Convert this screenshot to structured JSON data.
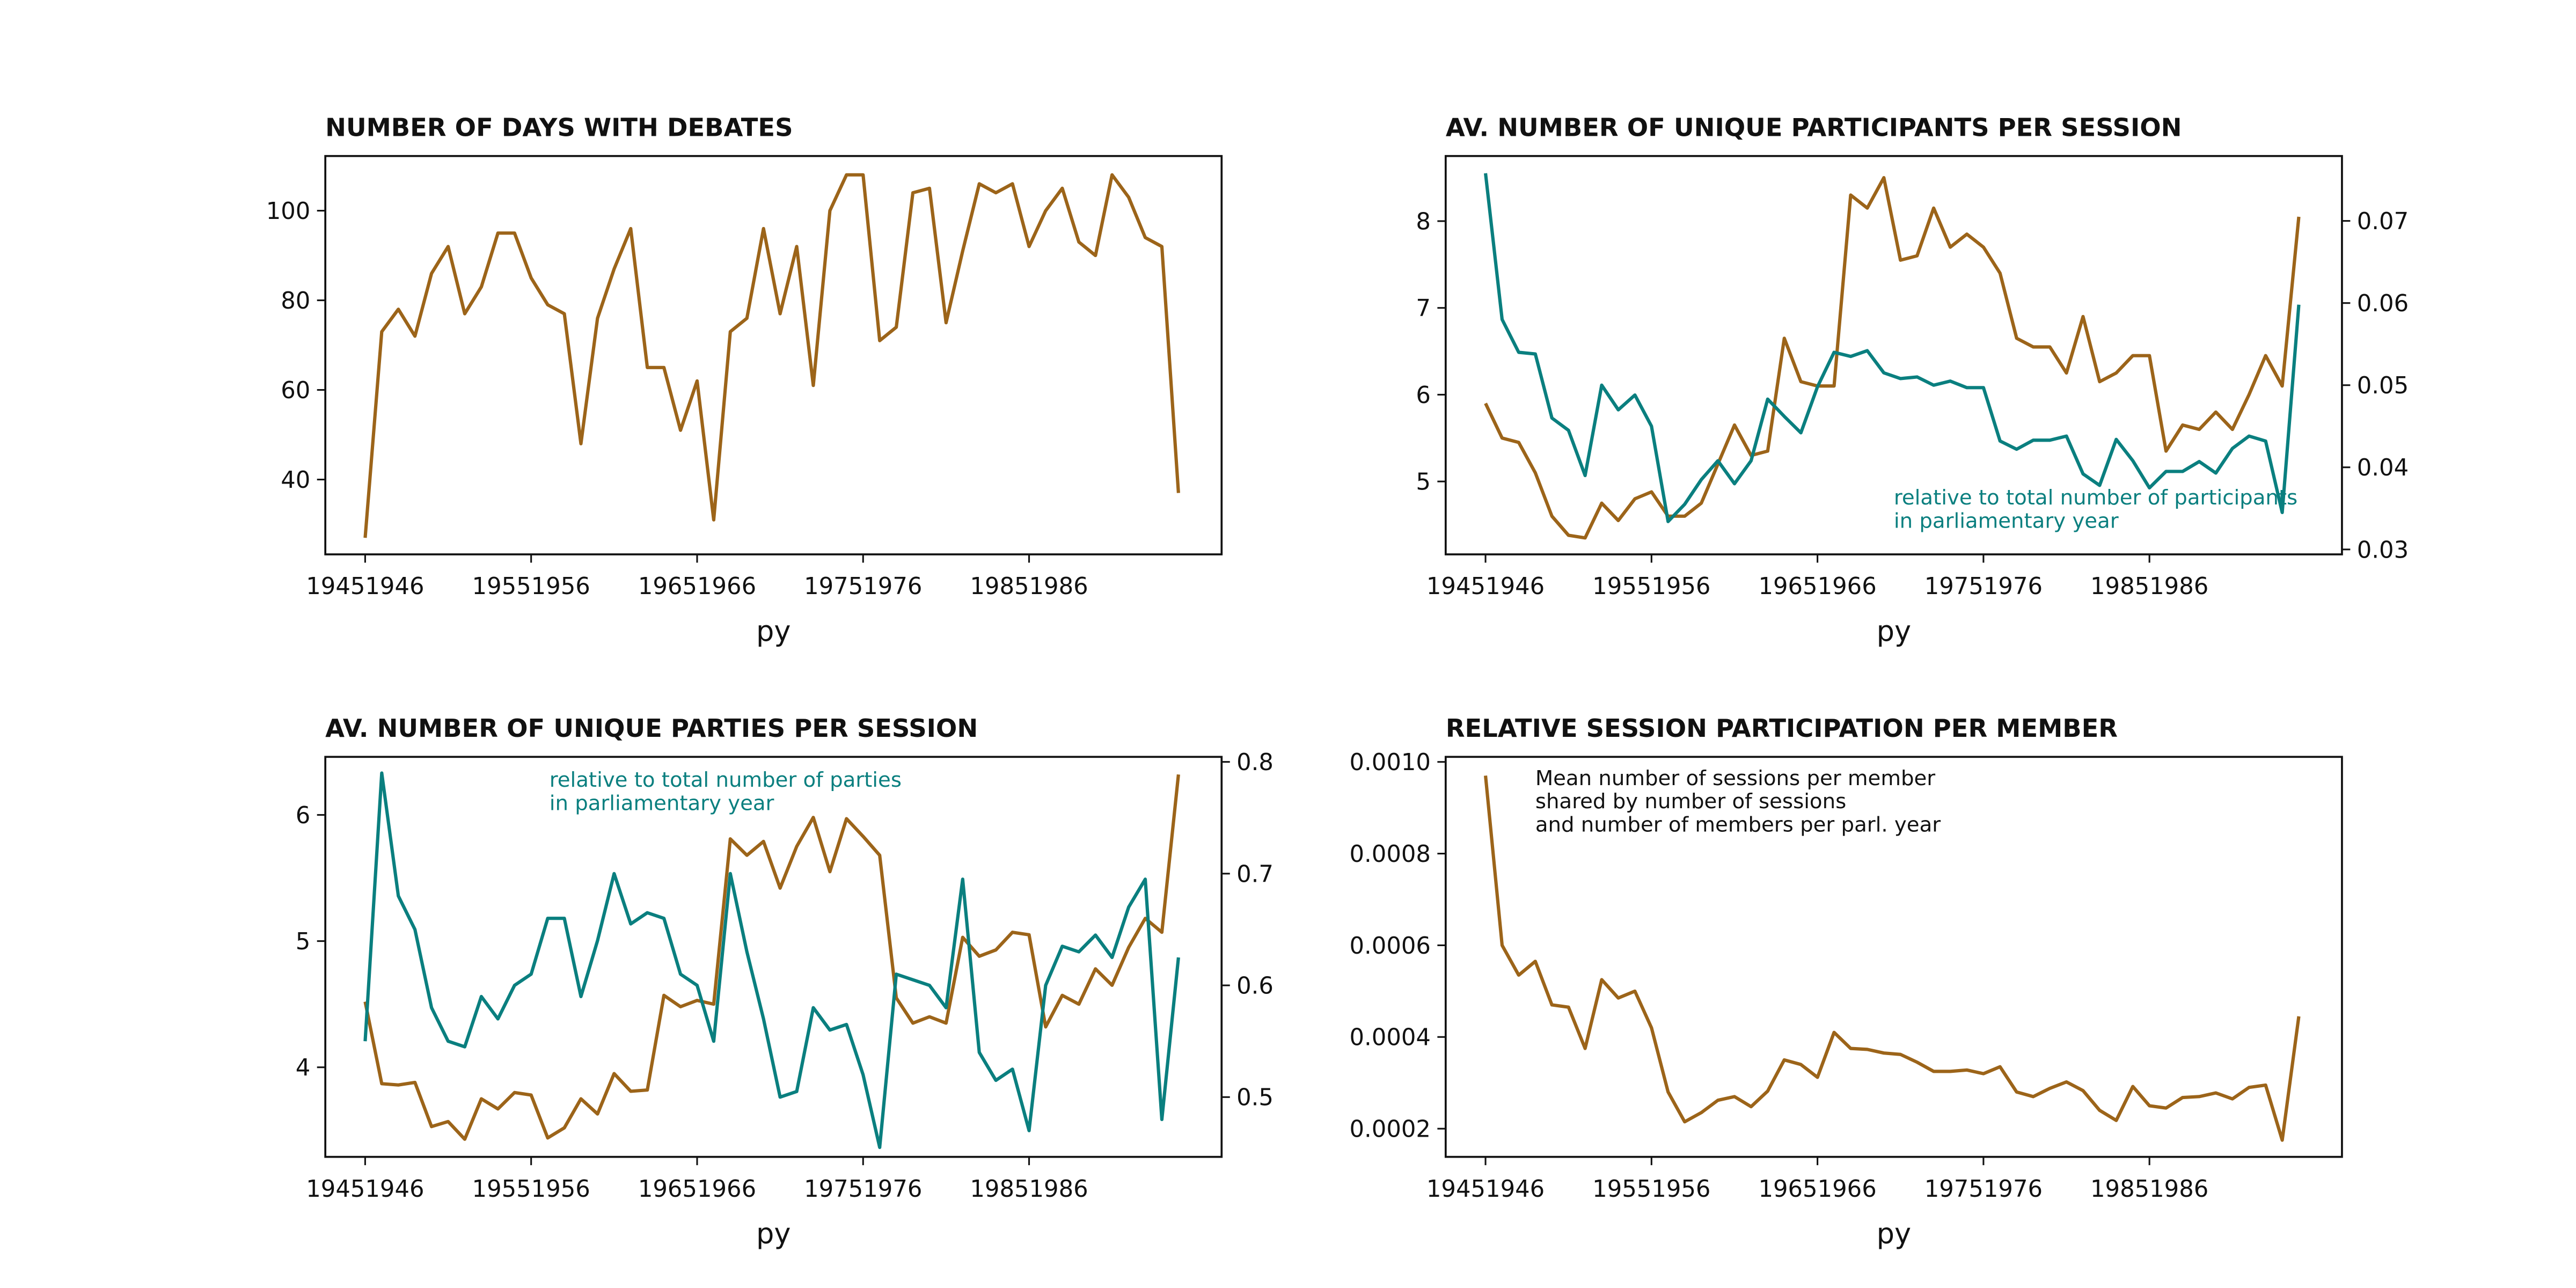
{
  "chart_data": [
    {
      "type": "line",
      "title": "NUMBER OF DAYS WITH DEBATES",
      "x_label": "py",
      "categories": [
        "19451946",
        null,
        null,
        null,
        null,
        null,
        null,
        null,
        null,
        null,
        "19551956",
        null,
        null,
        null,
        null,
        null,
        null,
        null,
        null,
        null,
        "19651966",
        null,
        null,
        null,
        null,
        null,
        null,
        null,
        null,
        null,
        "19751976",
        null,
        null,
        null,
        null,
        null,
        null,
        null,
        null,
        null,
        "19851986",
        null,
        null,
        null,
        null,
        null,
        null,
        null,
        null,
        null
      ],
      "xlim": [
        -2.4,
        51.6
      ],
      "ylim": [
        23.3,
        112.2
      ],
      "yticks": [
        40,
        60,
        80,
        100
      ],
      "series": [
        {
          "color": "#9c6419",
          "values": [
            27,
            73,
            78,
            72,
            86,
            92,
            77,
            83,
            95,
            95,
            85,
            79,
            77,
            48,
            76,
            87,
            96,
            65,
            65,
            51,
            62,
            31,
            73,
            76,
            96,
            77,
            92,
            61,
            100,
            108,
            108,
            71,
            74,
            104,
            105,
            75,
            91,
            106,
            104,
            106,
            92,
            100,
            105,
            93,
            90,
            108,
            103,
            94,
            92,
            37
          ]
        }
      ]
    },
    {
      "type": "line",
      "title": "AV. NUMBER OF UNIQUE PARTICIPANTS PER SESSION",
      "x_label": "py",
      "categories": [
        "19451946",
        null,
        null,
        null,
        null,
        null,
        null,
        null,
        null,
        null,
        "19551956",
        null,
        null,
        null,
        null,
        null,
        null,
        null,
        null,
        null,
        "19651966",
        null,
        null,
        null,
        null,
        null,
        null,
        null,
        null,
        null,
        "19751976",
        null,
        null,
        null,
        null,
        null,
        null,
        null,
        null,
        null,
        "19851986",
        null,
        null,
        null,
        null,
        null,
        null,
        null,
        null,
        null
      ],
      "xlim": [
        -2.4,
        51.6
      ],
      "ylim": [
        4.16,
        8.75
      ],
      "yticks": [
        5,
        6,
        7,
        8
      ],
      "y2lim": [
        0.0294,
        0.0779
      ],
      "y2ticks": [
        0.03,
        0.04,
        0.05,
        0.06,
        0.07
      ],
      "annotation": {
        "lines": [
          "relative to total number of participants",
          "in parliamentary year"
        ],
        "color": "#0a7f7f"
      },
      "series": [
        {
          "color": "#9c6419",
          "values": [
            5.9,
            5.5,
            5.45,
            5.1,
            4.6,
            4.38,
            4.35,
            4.75,
            4.55,
            4.8,
            4.88,
            4.6,
            4.6,
            4.75,
            5.2,
            5.65,
            5.3,
            5.35,
            6.65,
            6.15,
            6.1,
            6.1,
            8.3,
            8.15,
            8.5,
            7.55,
            7.6,
            8.15,
            7.7,
            7.85,
            7.7,
            7.4,
            6.65,
            6.55,
            6.55,
            6.25,
            6.9,
            6.15,
            6.25,
            6.45,
            6.45,
            5.35,
            5.65,
            5.6,
            5.8,
            5.6,
            6.0,
            6.45,
            6.1,
            8.05
          ]
        },
        {
          "color": "#0a7f7f",
          "axis": "y2",
          "values": [
            0.0758,
            0.058,
            0.054,
            0.0538,
            0.046,
            0.0445,
            0.039,
            0.05,
            0.047,
            0.0488,
            0.045,
            0.0334,
            0.0355,
            0.0385,
            0.0408,
            0.038,
            0.0408,
            0.0483,
            0.0462,
            0.0442,
            0.0498,
            0.054,
            0.0535,
            0.0542,
            0.0515,
            0.0508,
            0.051,
            0.05,
            0.0505,
            0.0497,
            0.0497,
            0.0432,
            0.0422,
            0.0433,
            0.0433,
            0.0438,
            0.0392,
            0.0378,
            0.0434,
            0.0408,
            0.0375,
            0.0395,
            0.0395,
            0.0407,
            0.0393,
            0.0423,
            0.0438,
            0.0432,
            0.0345,
            0.0598
          ]
        }
      ]
    },
    {
      "type": "line",
      "title": "AV. NUMBER OF UNIQUE PARTIES PER SESSION",
      "x_label": "py",
      "categories": [
        "19451946",
        null,
        null,
        null,
        null,
        null,
        null,
        null,
        null,
        null,
        "19551956",
        null,
        null,
        null,
        null,
        null,
        null,
        null,
        null,
        null,
        "19651966",
        null,
        null,
        null,
        null,
        null,
        null,
        null,
        null,
        null,
        "19751976",
        null,
        null,
        null,
        null,
        null,
        null,
        null,
        null,
        null,
        "19851986",
        null,
        null,
        null,
        null,
        null,
        null,
        null,
        null,
        null
      ],
      "xlim": [
        -2.4,
        51.6
      ],
      "ylim": [
        3.29,
        6.46
      ],
      "yticks": [
        4,
        5,
        6
      ],
      "y2lim": [
        0.4465,
        0.8045
      ],
      "y2ticks": [
        0.5,
        0.6,
        0.7,
        0.8
      ],
      "annotation": {
        "lines": [
          "relative to total number of parties",
          "in parliamentary year"
        ],
        "color": "#0a7f7f"
      },
      "series": [
        {
          "color": "#9c6419",
          "values": [
            4.52,
            3.87,
            3.86,
            3.88,
            3.53,
            3.57,
            3.43,
            3.75,
            3.67,
            3.8,
            3.78,
            3.44,
            3.52,
            3.75,
            3.63,
            3.95,
            3.81,
            3.82,
            4.57,
            4.48,
            4.53,
            4.5,
            5.81,
            5.68,
            5.79,
            5.42,
            5.75,
            5.98,
            5.55,
            5.97,
            5.83,
            5.68,
            4.55,
            4.35,
            4.4,
            4.35,
            5.03,
            4.88,
            4.93,
            5.07,
            5.05,
            4.32,
            4.57,
            4.5,
            4.78,
            4.65,
            4.95,
            5.18,
            5.07,
            6.32
          ]
        },
        {
          "color": "#0a7f7f",
          "axis": "y2",
          "values": [
            0.55,
            0.79,
            0.68,
            0.65,
            0.58,
            0.55,
            0.545,
            0.59,
            0.57,
            0.6,
            0.61,
            0.66,
            0.66,
            0.59,
            0.64,
            0.7,
            0.655,
            0.665,
            0.66,
            0.61,
            0.6,
            0.55,
            0.7,
            0.63,
            0.57,
            0.5,
            0.505,
            0.58,
            0.56,
            0.565,
            0.52,
            0.455,
            0.61,
            0.605,
            0.6,
            0.58,
            0.695,
            0.54,
            0.515,
            0.525,
            0.47,
            0.6,
            0.635,
            0.63,
            0.645,
            0.625,
            0.67,
            0.695,
            0.48,
            0.625
          ]
        }
      ]
    },
    {
      "type": "line",
      "title": "RELATIVE SESSION PARTICIPATION PER MEMBER",
      "x_label": "py",
      "categories": [
        "19451946",
        null,
        null,
        null,
        null,
        null,
        null,
        null,
        null,
        null,
        "19551956",
        null,
        null,
        null,
        null,
        null,
        null,
        null,
        null,
        null,
        "19651966",
        null,
        null,
        null,
        null,
        null,
        null,
        null,
        null,
        null,
        "19751976",
        null,
        null,
        null,
        null,
        null,
        null,
        null,
        null,
        null,
        "19851986",
        null,
        null,
        null,
        null,
        null,
        null,
        null,
        null,
        null
      ],
      "xlim": [
        -2.4,
        51.6
      ],
      "ylim": [
        0.0001385,
        0.001011
      ],
      "yticks": [
        {
          "value": 0.0002,
          "label": "0.0002"
        },
        {
          "value": 0.0004,
          "label": "0.0004"
        },
        {
          "value": 0.0006,
          "label": "0.0006"
        },
        {
          "value": 0.0008,
          "label": "0.0008"
        },
        {
          "value": 0.001,
          "label": "0.0010"
        }
      ],
      "annotation": {
        "lines": [
          "Mean number of sessions per member",
          "shared by number of sessions",
          "and number of members per parl. year"
        ],
        "color": "#111111"
      },
      "series": [
        {
          "color": "#9c6419",
          "values": [
            0.00097,
            0.0006,
            0.000535,
            0.000565,
            0.00047,
            0.000465,
            0.000375,
            0.000525,
            0.000485,
            0.0005,
            0.00042,
            0.00028,
            0.000215,
            0.000235,
            0.000262,
            0.00027,
            0.000248,
            0.000282,
            0.00035,
            0.00034,
            0.000312,
            0.00041,
            0.000375,
            0.000373,
            0.000365,
            0.000362,
            0.000345,
            0.000325,
            0.000325,
            0.000328,
            0.00032,
            0.000335,
            0.00028,
            0.00027,
            0.000288,
            0.000302,
            0.000283,
            0.00024,
            0.000218,
            0.000292,
            0.00025,
            0.000245,
            0.000268,
            0.00027,
            0.000278,
            0.000265,
            0.00029,
            0.000295,
            0.000175,
            0.000445
          ]
        }
      ]
    }
  ]
}
